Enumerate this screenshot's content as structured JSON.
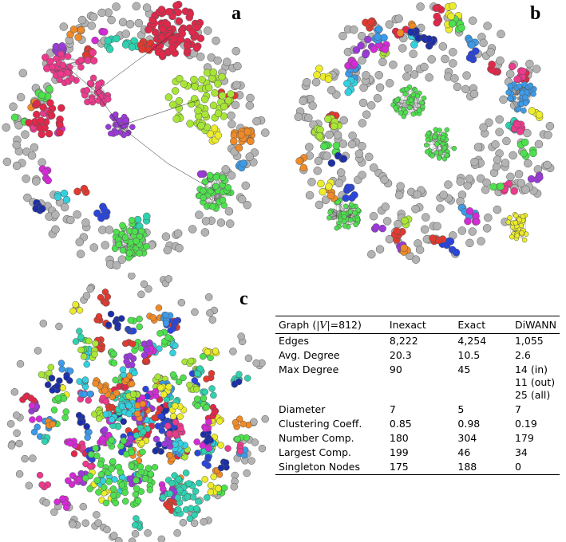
{
  "panels": {
    "a": {
      "letter": "a"
    },
    "b": {
      "letter": "b"
    },
    "c": {
      "letter": "c"
    }
  },
  "table": {
    "header": {
      "graph_prefix": "Graph (",
      "graph_var": "|V|",
      "graph_suffix": "=812)",
      "inexact": "Inexact",
      "exact": "Exact",
      "diwann": "DiWANN"
    },
    "rows": [
      {
        "label": "Edges",
        "inexact": "8,222",
        "exact": "4,254",
        "diwann": [
          "1,055"
        ]
      },
      {
        "label": "Avg. Degree",
        "inexact": "20.3",
        "exact": "10.5",
        "diwann": [
          "2.6"
        ]
      },
      {
        "label": "Max Degree",
        "inexact": "90",
        "exact": "45",
        "diwann": [
          "14 (in)",
          "11 (out)",
          "25 (all)"
        ]
      },
      {
        "label": "Diameter",
        "inexact": "7",
        "exact": "5",
        "diwann": [
          "7"
        ]
      },
      {
        "label": "Clustering Coeff.",
        "inexact": "0.85",
        "exact": "0.98",
        "diwann": [
          "0.19"
        ]
      },
      {
        "label": "Number Comp.",
        "inexact": "180",
        "exact": "304",
        "diwann": [
          "179"
        ]
      },
      {
        "label": "Largest Comp.",
        "inexact": "199",
        "exact": "46",
        "diwann": [
          "34"
        ]
      },
      {
        "label": "Singleton Nodes",
        "inexact": "175",
        "exact": "188",
        "diwann": [
          "0"
        ]
      }
    ]
  },
  "colors": {
    "singleton": "#b3b3b3",
    "crimson": "#e0284a",
    "pink": "#ec3a8c",
    "magenta": "#d42bd4",
    "purple": "#9b3ad8",
    "blue": "#2a45d8",
    "navy": "#1c2fa8",
    "sky": "#3c9ae8",
    "cyan": "#34d0e0",
    "teal": "#2fd2b0",
    "green": "#4ee04e",
    "lime": "#a8e636",
    "yellow": "#ecec2a",
    "orange": "#f08a26",
    "red": "#e03a30"
  }
}
